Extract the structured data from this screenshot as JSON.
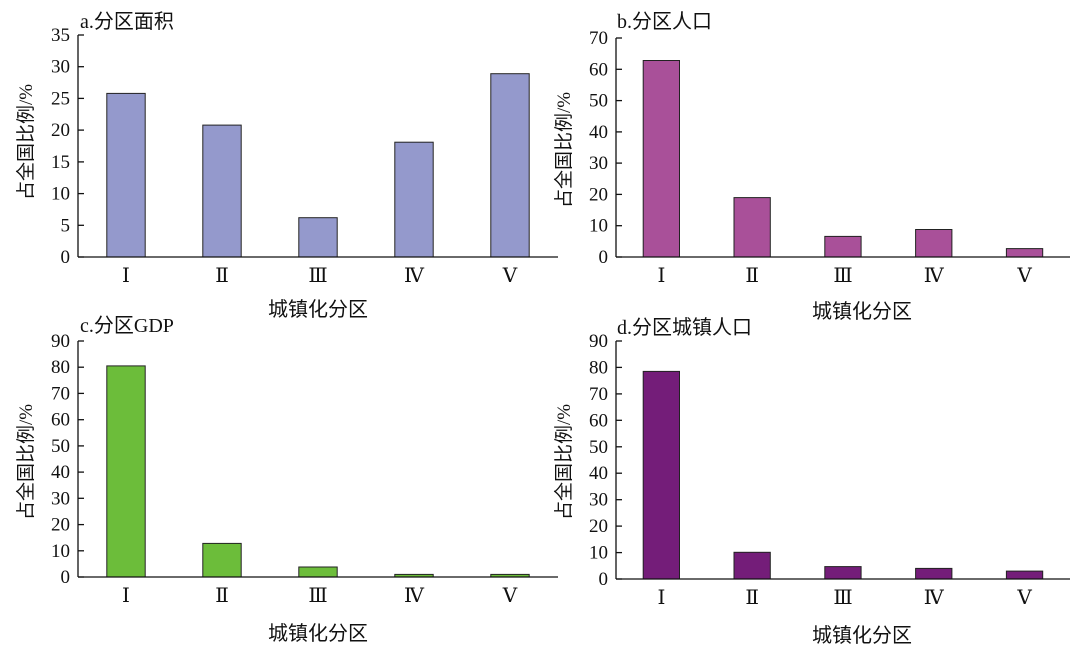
{
  "chart_data": [
    {
      "type": "bar",
      "title": "a.分区面积",
      "categories": [
        "Ⅰ",
        "Ⅱ",
        "Ⅲ",
        "Ⅳ",
        "Ⅴ"
      ],
      "values": [
        25.8,
        20.8,
        6.2,
        18.1,
        28.9
      ],
      "xlabel": "城镇化分区",
      "ylabel": "占全国比例/%",
      "ylim": [
        0,
        35
      ],
      "yticks": [
        0,
        5,
        10,
        15,
        20,
        25,
        30,
        35
      ],
      "color": "#9499cc"
    },
    {
      "type": "bar",
      "title": "b.分区人口",
      "categories": [
        "Ⅰ",
        "Ⅱ",
        "Ⅲ",
        "Ⅳ",
        "Ⅴ"
      ],
      "values": [
        62.8,
        19.0,
        6.6,
        8.8,
        2.7
      ],
      "xlabel": "城镇化分区",
      "ylabel": "占全国比例/%",
      "ylim": [
        0,
        70
      ],
      "yticks": [
        0,
        10,
        20,
        30,
        40,
        50,
        60,
        70
      ],
      "color": "#a95099"
    },
    {
      "type": "bar",
      "title": "c.分区GDP",
      "categories": [
        "Ⅰ",
        "Ⅱ",
        "Ⅲ",
        "Ⅳ",
        "Ⅴ"
      ],
      "values": [
        80.5,
        12.8,
        3.8,
        1.0,
        1.0
      ],
      "xlabel": "城镇化分区",
      "ylabel": "占全国比例/%",
      "ylim": [
        0,
        90
      ],
      "yticks": [
        0,
        10,
        20,
        30,
        40,
        50,
        60,
        70,
        80,
        90
      ],
      "color": "#6cbd3a"
    },
    {
      "type": "bar",
      "title": "d.分区城镇人口",
      "categories": [
        "Ⅰ",
        "Ⅱ",
        "Ⅲ",
        "Ⅳ",
        "Ⅴ"
      ],
      "values": [
        78.5,
        10.1,
        4.7,
        4.0,
        3.0
      ],
      "xlabel": "城镇化分区",
      "ylabel": "占全国比例/%",
      "ylim": [
        0,
        90
      ],
      "yticks": [
        0,
        10,
        20,
        30,
        40,
        50,
        60,
        70,
        80,
        90
      ],
      "color": "#741d79"
    }
  ]
}
